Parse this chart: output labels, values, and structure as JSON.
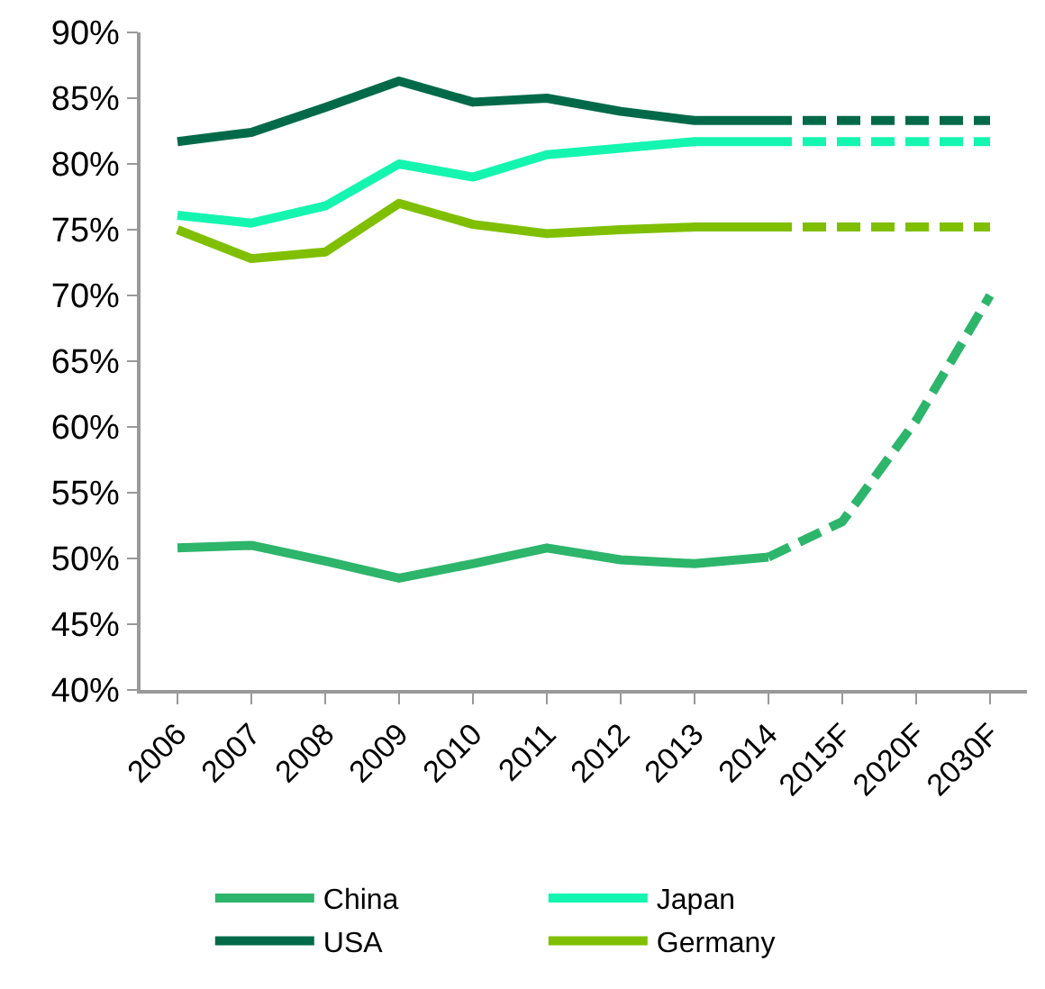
{
  "chart_data": {
    "type": "line",
    "categories": [
      "2006",
      "2007",
      "2008",
      "2009",
      "2010",
      "2011",
      "2012",
      "2013",
      "2014",
      "2015F",
      "2020F",
      "2030F"
    ],
    "series": [
      {
        "name": "China",
        "color": "#2db56b",
        "line_style": "solid",
        "values": [
          50.8,
          51.0,
          49.8,
          48.5,
          49.6,
          50.8,
          49.9,
          49.6,
          50.1,
          null,
          null,
          null
        ]
      },
      {
        "name": "Japan",
        "color": "#14f5b0",
        "line_style": "solid",
        "values": [
          76.1,
          75.5,
          76.8,
          80.0,
          79.0,
          80.7,
          81.2,
          81.7,
          81.7,
          null,
          null,
          null
        ]
      },
      {
        "name": "USA",
        "color": "#006a48",
        "line_style": "solid",
        "values": [
          81.7,
          82.4,
          84.3,
          86.3,
          84.7,
          85.0,
          84.0,
          83.3,
          83.3,
          null,
          null,
          null
        ]
      },
      {
        "name": "Germany",
        "color": "#7fbf00",
        "line_style": "solid",
        "values": [
          75.0,
          72.8,
          73.3,
          77.0,
          75.4,
          74.7,
          75.0,
          75.2,
          75.2,
          null,
          null,
          null
        ]
      },
      {
        "color": "#2db56b",
        "line_style": "dashed",
        "values": [
          null,
          null,
          null,
          null,
          null,
          null,
          null,
          null,
          50.1,
          52.8,
          60.5,
          70.0
        ]
      },
      {
        "color": "#14f5b0",
        "line_style": "dashed",
        "values": [
          null,
          null,
          null,
          null,
          null,
          null,
          null,
          null,
          81.7,
          81.7,
          81.7,
          81.7
        ]
      },
      {
        "color": "#006a48",
        "line_style": "dashed",
        "values": [
          null,
          null,
          null,
          null,
          null,
          null,
          null,
          null,
          83.3,
          83.3,
          83.3,
          83.3
        ]
      },
      {
        "color": "#7fbf00",
        "line_style": "dashed",
        "values": [
          null,
          null,
          null,
          null,
          null,
          null,
          null,
          null,
          75.2,
          75.2,
          75.2,
          75.2
        ]
      }
    ],
    "ylim": [
      40,
      90
    ],
    "yticks": [
      {
        "value": 40,
        "label": "40%"
      },
      {
        "value": 45,
        "label": "45%"
      },
      {
        "value": 50,
        "label": "50%"
      },
      {
        "value": 55,
        "label": "55%"
      },
      {
        "value": 60,
        "label": "60%"
      },
      {
        "value": 65,
        "label": "65%"
      },
      {
        "value": 70,
        "label": "70%"
      },
      {
        "value": 75,
        "label": "75%"
      },
      {
        "value": 80,
        "label": "80%"
      },
      {
        "value": 85,
        "label": "85%"
      },
      {
        "value": 90,
        "label": "90%"
      }
    ],
    "grid": false,
    "legend": "bottom",
    "marker": "none"
  }
}
